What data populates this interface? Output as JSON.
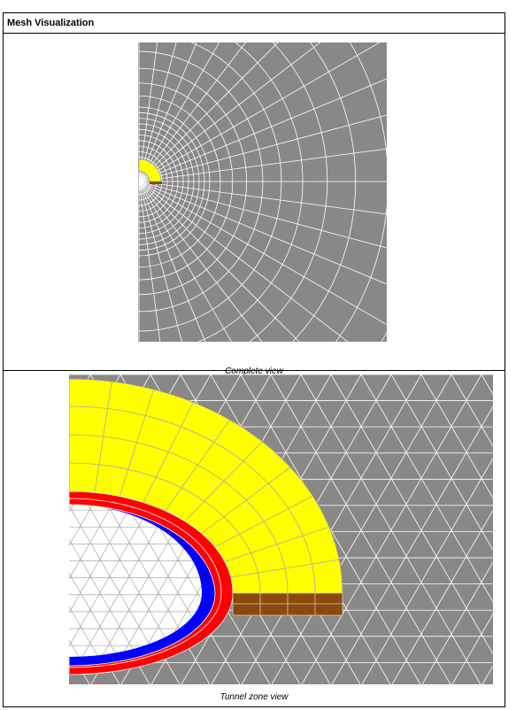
{
  "header": {
    "title": "Mesh Visualization"
  },
  "panels": [
    {
      "caption": "Complete view"
    },
    {
      "caption": "Tunnel zone view"
    }
  ]
}
